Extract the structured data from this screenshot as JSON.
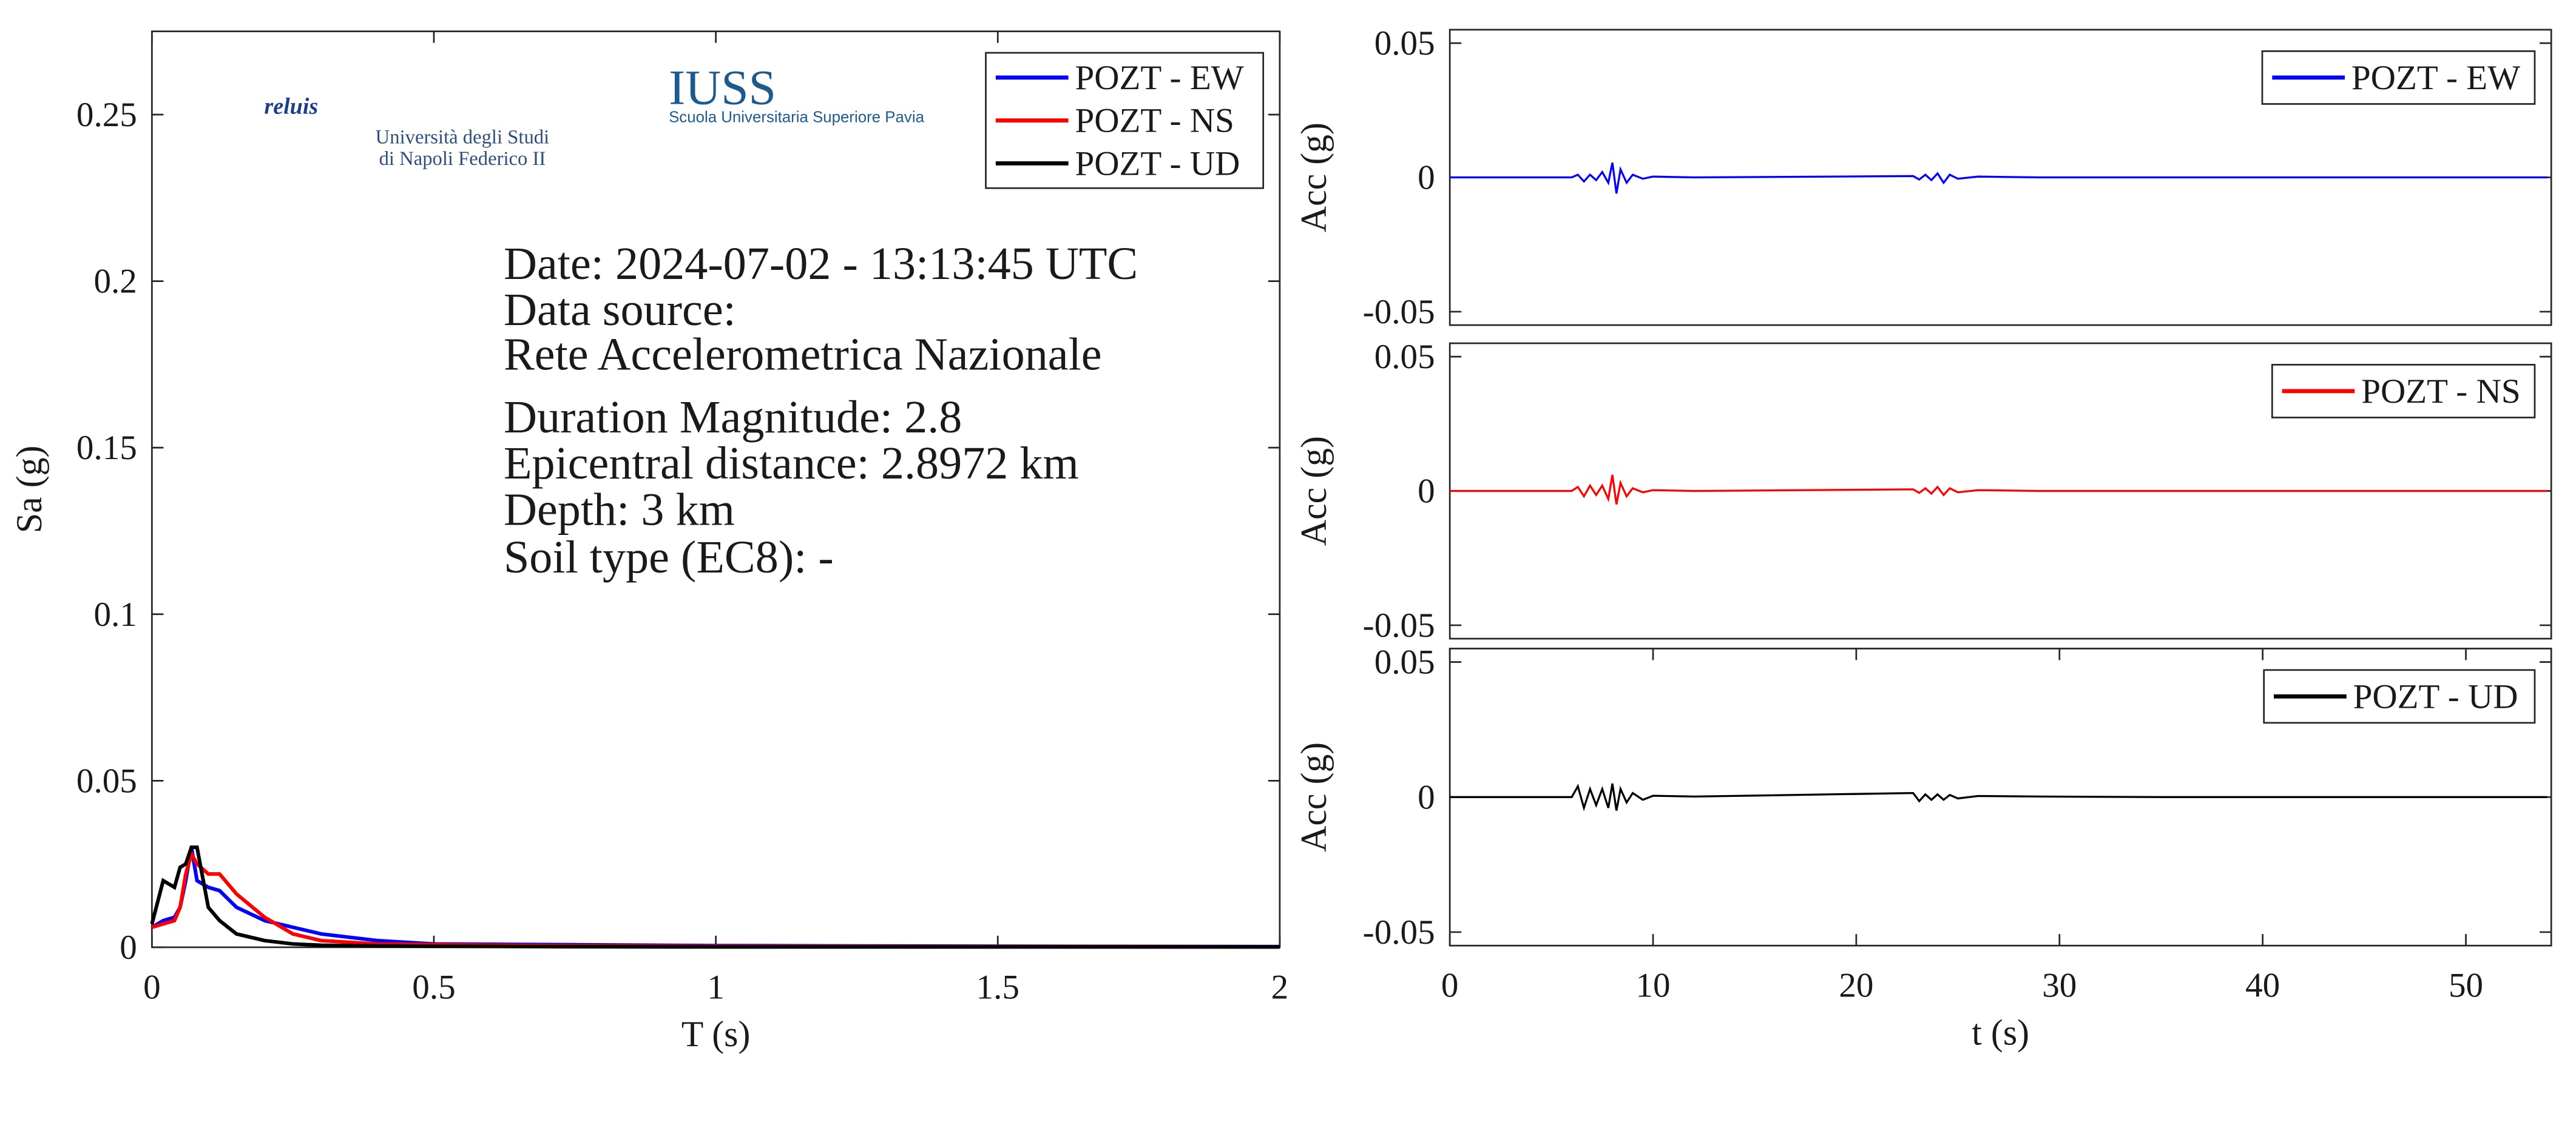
{
  "chart_data": [
    {
      "type": "line",
      "xlabel": "T (s)",
      "ylabel": "Sa (g)",
      "x": [
        0,
        0.02,
        0.04,
        0.05,
        0.06,
        0.07,
        0.08,
        0.1,
        0.12,
        0.15,
        0.2,
        0.25,
        0.3,
        0.4,
        0.5,
        0.7,
        1,
        1.5,
        2
      ],
      "series": [
        {
          "name": "POZT - EW",
          "color": "#0000ff",
          "values": [
            0.006,
            0.008,
            0.009,
            0.012,
            0.02,
            0.03,
            0.02,
            0.018,
            0.017,
            0.012,
            0.008,
            0.006,
            0.004,
            0.002,
            0.001,
            0.0008,
            0.0005,
            0.0003,
            0.0002
          ]
        },
        {
          "name": "POZT - NS",
          "color": "#ff0000",
          "values": [
            0.006,
            0.007,
            0.008,
            0.012,
            0.022,
            0.028,
            0.025,
            0.022,
            0.022,
            0.016,
            0.009,
            0.004,
            0.002,
            0.001,
            0.0008,
            0.0005,
            0.0003,
            0.0002,
            0.0001
          ]
        },
        {
          "name": "POZT - UD",
          "color": "#000000",
          "values": [
            0.007,
            0.02,
            0.018,
            0.024,
            0.025,
            0.03,
            0.03,
            0.012,
            0.008,
            0.004,
            0.002,
            0.001,
            0.0006,
            0.0004,
            0.0003,
            0.0002,
            0.0001,
            0.0001,
            0.0001
          ]
        }
      ],
      "xlim": [
        0,
        2
      ],
      "xticks": [
        0,
        0.5,
        1,
        1.5,
        2
      ],
      "ylim": [
        0,
        0.275
      ],
      "yticks": [
        0,
        0.05,
        0.1,
        0.15,
        0.2,
        0.25
      ],
      "grid": false,
      "legend": "upper right",
      "annotations": [
        "Date: 2024-07-02 - 13:13:45 UTC",
        "Data source:",
        "Rete Accelerometrica Nazionale",
        "Duration Magnitude: 2.8",
        "Epicentral distance: 2.8972 km",
        "Depth: 3 km",
        "Soil type (EC8): -"
      ],
      "logo_texts": [
        "reluis",
        "Università degli Studi",
        "di Napoli Federico II",
        "IUSS",
        "Scuola Universitaria Superiore Pavia"
      ]
    },
    {
      "type": "line",
      "ylabel": "Acc (g)",
      "x": [
        0,
        6,
        6.3,
        6.6,
        6.9,
        7.2,
        7.5,
        7.8,
        8.0,
        8.2,
        8.4,
        8.7,
        9,
        9.5,
        10,
        12,
        22.8,
        23.1,
        23.4,
        23.7,
        24,
        24.3,
        24.6,
        25,
        26,
        29,
        35,
        54
      ],
      "series": [
        {
          "name": "POZT - EW",
          "color": "#0000ff",
          "values": [
            0,
            0,
            0.001,
            -0.0015,
            0.001,
            -0.001,
            0.002,
            -0.002,
            0.0055,
            -0.006,
            0.003,
            -0.002,
            0.001,
            -0.0005,
            0.0003,
            0,
            0.0005,
            -0.0008,
            0.001,
            -0.001,
            0.0015,
            -0.002,
            0.001,
            -0.0005,
            0.0003,
            0,
            0,
            0
          ]
        }
      ],
      "xlim": [
        0,
        54.2
      ],
      "ylim": [
        -0.055,
        0.055
      ],
      "yticks": [
        -0.05,
        0,
        0.05
      ],
      "grid": false,
      "legend": "upper right"
    },
    {
      "type": "line",
      "ylabel": "Acc (g)",
      "x": [
        0,
        6,
        6.3,
        6.6,
        6.9,
        7.2,
        7.5,
        7.8,
        8.0,
        8.2,
        8.4,
        8.7,
        9,
        9.5,
        10,
        12,
        22.8,
        23.1,
        23.4,
        23.7,
        24,
        24.3,
        24.6,
        25,
        26,
        29,
        35,
        54
      ],
      "series": [
        {
          "name": "POZT - NS",
          "color": "#ff0000",
          "values": [
            0,
            0,
            0.0015,
            -0.002,
            0.002,
            -0.0015,
            0.002,
            -0.003,
            0.006,
            -0.005,
            0.003,
            -0.002,
            0.001,
            -0.0005,
            0.0003,
            0,
            0.0006,
            -0.0007,
            0.001,
            -0.001,
            0.0015,
            -0.0015,
            0.001,
            -0.0005,
            0.0003,
            0,
            0,
            0
          ]
        }
      ],
      "xlim": [
        0,
        54.2
      ],
      "ylim": [
        -0.055,
        0.055
      ],
      "yticks": [
        -0.05,
        0,
        0.05
      ],
      "grid": false,
      "legend": "upper right"
    },
    {
      "type": "line",
      "ylabel": "Acc (g)",
      "xlabel": "t (s)",
      "x": [
        0,
        6,
        6.3,
        6.6,
        6.9,
        7.2,
        7.5,
        7.8,
        8.0,
        8.2,
        8.4,
        8.7,
        9,
        9.5,
        10,
        12,
        22.8,
        23.1,
        23.4,
        23.7,
        24,
        24.3,
        24.6,
        25,
        26,
        29,
        35,
        54
      ],
      "series": [
        {
          "name": "POZT - UD",
          "color": "#000000",
          "values": [
            0,
            0,
            0.004,
            -0.004,
            0.003,
            -0.003,
            0.003,
            -0.004,
            0.005,
            -0.005,
            0.003,
            -0.002,
            0.0015,
            -0.001,
            0.0005,
            0.0002,
            0.0015,
            -0.0015,
            0.001,
            -0.001,
            0.001,
            -0.001,
            0.0008,
            -0.0005,
            0.0004,
            0.0002,
            0,
            0
          ]
        }
      ],
      "xlim": [
        0,
        54.2
      ],
      "xticks": [
        0,
        10,
        20,
        30,
        40,
        50
      ],
      "ylim": [
        -0.055,
        0.055
      ],
      "yticks": [
        -0.05,
        0,
        0.05
      ],
      "grid": false,
      "legend": "upper right"
    }
  ]
}
